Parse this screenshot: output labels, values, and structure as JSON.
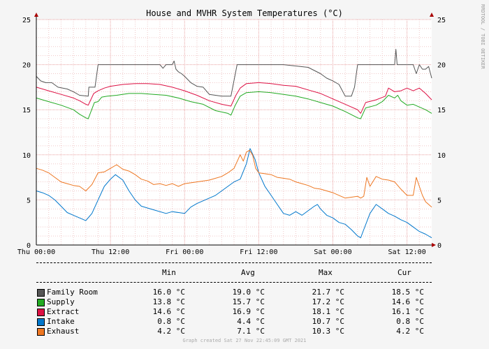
{
  "chart_data": {
    "type": "line",
    "title": "House and MVHR System Temperatures (°C)",
    "side_label": "RRDTOOL / TOBI OETIKER",
    "ylim": [
      0,
      25
    ],
    "yticks": [
      0,
      5,
      10,
      15,
      20,
      25
    ],
    "x_hours": [
      0,
      60
    ],
    "xticks": [
      {
        "h": 0,
        "label": "Thu 00:00"
      },
      {
        "h": 12,
        "label": "Thu 12:00"
      },
      {
        "h": 24,
        "label": "Fri 00:00"
      },
      {
        "h": 36,
        "label": "Fri 12:00"
      },
      {
        "h": 48,
        "label": "Sat 00:00"
      },
      {
        "h": 60,
        "label": "Sat 12:00"
      }
    ],
    "grid": true,
    "series": [
      {
        "name": "Family Room",
        "color": "#555555",
        "points": [
          [
            0,
            18.7
          ],
          [
            0.7,
            18.2
          ],
          [
            1.5,
            18.0
          ],
          [
            2.5,
            18.0
          ],
          [
            3.5,
            17.5
          ],
          [
            5,
            17.3
          ],
          [
            6,
            17.0
          ],
          [
            7,
            16.6
          ],
          [
            8.4,
            16.5
          ],
          [
            8.5,
            17.5
          ],
          [
            9.5,
            17.5
          ],
          [
            10,
            20.0
          ],
          [
            14,
            20.0
          ],
          [
            15,
            20.0
          ],
          [
            20,
            20.0
          ],
          [
            20.5,
            19.6
          ],
          [
            21,
            20.0
          ],
          [
            22,
            20.0
          ],
          [
            22.3,
            20.4
          ],
          [
            22.6,
            19.5
          ],
          [
            23,
            19.2
          ],
          [
            23.5,
            19.0
          ],
          [
            24,
            18.7
          ],
          [
            25,
            18.0
          ],
          [
            26,
            17.6
          ],
          [
            27,
            17.5
          ],
          [
            28,
            16.7
          ],
          [
            30,
            16.5
          ],
          [
            31.5,
            16.5
          ],
          [
            32.5,
            20.0
          ],
          [
            38,
            20.0
          ],
          [
            40,
            20.0
          ],
          [
            44,
            19.7
          ],
          [
            46,
            19.0
          ],
          [
            47,
            18.5
          ],
          [
            48,
            18.2
          ],
          [
            49,
            17.8
          ],
          [
            50,
            16.5
          ],
          [
            51,
            16.5
          ],
          [
            51.5,
            17.5
          ],
          [
            52,
            20.0
          ],
          [
            57,
            20.0
          ],
          [
            58,
            20.0
          ],
          [
            58.2,
            21.7
          ],
          [
            58.4,
            20.0
          ],
          [
            59,
            20.0
          ],
          [
            60,
            20.0
          ],
          [
            61,
            20.0
          ],
          [
            61.5,
            19.0
          ],
          [
            62,
            20.0
          ],
          [
            62.5,
            19.5
          ],
          [
            63,
            19.5
          ],
          [
            63.5,
            19.8
          ],
          [
            64,
            18.5
          ]
        ]
      },
      {
        "name": "Supply",
        "color": "#22aa22",
        "points": [
          [
            0,
            16.3
          ],
          [
            2,
            15.9
          ],
          [
            4,
            15.5
          ],
          [
            6,
            15.0
          ],
          [
            7,
            14.5
          ],
          [
            8,
            14.1
          ],
          [
            8.4,
            14.0
          ],
          [
            9.4,
            15.8
          ],
          [
            10,
            15.9
          ],
          [
            10.6,
            16.4
          ],
          [
            11.5,
            16.5
          ],
          [
            13,
            16.6
          ],
          [
            15,
            16.8
          ],
          [
            17,
            16.8
          ],
          [
            19,
            16.7
          ],
          [
            21,
            16.6
          ],
          [
            23,
            16.3
          ],
          [
            25,
            15.9
          ],
          [
            27,
            15.6
          ],
          [
            29,
            14.9
          ],
          [
            31,
            14.6
          ],
          [
            31.5,
            14.4
          ],
          [
            32.2,
            15.5
          ],
          [
            33,
            16.5
          ],
          [
            34,
            16.9
          ],
          [
            36,
            17.0
          ],
          [
            38,
            16.9
          ],
          [
            40,
            16.7
          ],
          [
            42,
            16.5
          ],
          [
            44,
            16.2
          ],
          [
            46,
            15.8
          ],
          [
            48,
            15.4
          ],
          [
            50,
            14.8
          ],
          [
            52,
            14.1
          ],
          [
            52.5,
            14.0
          ],
          [
            53.3,
            15.2
          ],
          [
            55,
            15.5
          ],
          [
            56,
            15.9
          ],
          [
            57,
            16.6
          ],
          [
            58,
            16.3
          ],
          [
            58.5,
            16.6
          ],
          [
            59,
            16.0
          ],
          [
            60,
            15.5
          ],
          [
            61,
            15.6
          ],
          [
            62,
            15.3
          ],
          [
            63,
            15.0
          ],
          [
            64,
            14.6
          ]
        ]
      },
      {
        "name": "Extract",
        "color": "#dd1144",
        "points": [
          [
            0,
            17.5
          ],
          [
            2,
            17.1
          ],
          [
            4,
            16.7
          ],
          [
            6,
            16.3
          ],
          [
            7,
            16.0
          ],
          [
            8,
            15.6
          ],
          [
            8.4,
            15.5
          ],
          [
            9.3,
            16.8
          ],
          [
            10,
            17.1
          ],
          [
            11,
            17.4
          ],
          [
            12,
            17.6
          ],
          [
            14,
            17.8
          ],
          [
            16,
            17.9
          ],
          [
            18,
            17.9
          ],
          [
            20,
            17.8
          ],
          [
            22,
            17.5
          ],
          [
            24,
            17.1
          ],
          [
            26,
            16.6
          ],
          [
            28,
            16.0
          ],
          [
            30,
            15.6
          ],
          [
            31.5,
            15.4
          ],
          [
            32.3,
            16.6
          ],
          [
            33,
            17.4
          ],
          [
            34,
            17.9
          ],
          [
            36,
            18.0
          ],
          [
            38,
            17.9
          ],
          [
            40,
            17.7
          ],
          [
            42,
            17.6
          ],
          [
            44,
            17.2
          ],
          [
            46,
            16.8
          ],
          [
            48,
            16.2
          ],
          [
            50,
            15.6
          ],
          [
            52,
            15.0
          ],
          [
            52.5,
            14.6
          ],
          [
            53.3,
            15.8
          ],
          [
            55,
            16.1
          ],
          [
            56.5,
            16.5
          ],
          [
            57,
            17.4
          ],
          [
            58,
            17.0
          ],
          [
            59,
            17.1
          ],
          [
            60,
            17.4
          ],
          [
            61,
            17.1
          ],
          [
            62,
            17.4
          ],
          [
            63,
            16.8
          ],
          [
            64,
            16.1
          ]
        ]
      },
      {
        "name": "Intake",
        "color": "#0077cc",
        "points": [
          [
            0,
            6.0
          ],
          [
            1,
            5.8
          ],
          [
            2,
            5.5
          ],
          [
            3,
            5.0
          ],
          [
            4,
            4.3
          ],
          [
            5,
            3.6
          ],
          [
            6,
            3.3
          ],
          [
            7,
            3.0
          ],
          [
            8,
            2.7
          ],
          [
            9,
            3.5
          ],
          [
            10,
            5.0
          ],
          [
            11,
            6.5
          ],
          [
            12,
            7.3
          ],
          [
            12.8,
            7.8
          ],
          [
            14,
            7.2
          ],
          [
            15,
            6.0
          ],
          [
            16,
            5.0
          ],
          [
            17,
            4.3
          ],
          [
            19,
            3.9
          ],
          [
            21,
            3.5
          ],
          [
            22,
            3.7
          ],
          [
            24,
            3.5
          ],
          [
            25,
            4.2
          ],
          [
            26,
            4.6
          ],
          [
            28,
            5.2
          ],
          [
            29,
            5.5
          ],
          [
            30,
            6.0
          ],
          [
            31,
            6.5
          ],
          [
            32,
            7.0
          ],
          [
            33,
            7.3
          ],
          [
            34,
            9.0
          ],
          [
            34.6,
            10.7
          ],
          [
            35.4,
            9.5
          ],
          [
            36,
            8.0
          ],
          [
            37,
            6.5
          ],
          [
            38,
            5.5
          ],
          [
            39,
            4.5
          ],
          [
            40,
            3.5
          ],
          [
            41,
            3.3
          ],
          [
            42,
            3.7
          ],
          [
            43,
            3.3
          ],
          [
            44,
            3.8
          ],
          [
            45,
            4.3
          ],
          [
            45.5,
            4.5
          ],
          [
            46,
            4.0
          ],
          [
            47,
            3.3
          ],
          [
            48,
            3.0
          ],
          [
            49,
            2.5
          ],
          [
            50,
            2.3
          ],
          [
            51,
            1.7
          ],
          [
            52,
            1.0
          ],
          [
            52.5,
            0.8
          ],
          [
            53,
            1.7
          ],
          [
            54,
            3.5
          ],
          [
            55,
            4.5
          ],
          [
            56,
            4.0
          ],
          [
            57,
            3.5
          ],
          [
            58,
            3.2
          ],
          [
            59,
            2.8
          ],
          [
            60,
            2.5
          ],
          [
            61,
            2.0
          ],
          [
            62,
            1.5
          ],
          [
            63,
            1.2
          ],
          [
            64,
            0.8
          ]
        ]
      },
      {
        "name": "Exhaust",
        "color": "#ee7722",
        "points": [
          [
            0,
            8.5
          ],
          [
            1,
            8.3
          ],
          [
            2,
            8.0
          ],
          [
            3,
            7.5
          ],
          [
            4,
            7.0
          ],
          [
            5,
            6.8
          ],
          [
            6,
            6.6
          ],
          [
            7,
            6.5
          ],
          [
            8,
            6.0
          ],
          [
            9,
            6.7
          ],
          [
            10,
            8.0
          ],
          [
            11,
            8.1
          ],
          [
            12,
            8.5
          ],
          [
            13,
            8.9
          ],
          [
            14,
            8.4
          ],
          [
            15,
            8.2
          ],
          [
            16,
            7.8
          ],
          [
            17,
            7.3
          ],
          [
            18,
            7.1
          ],
          [
            19,
            6.7
          ],
          [
            20,
            6.8
          ],
          [
            21,
            6.6
          ],
          [
            22,
            6.8
          ],
          [
            23,
            6.5
          ],
          [
            24,
            6.8
          ],
          [
            26,
            7.0
          ],
          [
            28,
            7.2
          ],
          [
            30,
            7.6
          ],
          [
            31,
            8.0
          ],
          [
            32,
            8.5
          ],
          [
            33,
            10.0
          ],
          [
            33.5,
            9.3
          ],
          [
            34,
            10.3
          ],
          [
            34.5,
            10.5
          ],
          [
            35,
            10.0
          ],
          [
            35.5,
            8.5
          ],
          [
            36,
            8.0
          ],
          [
            37,
            7.9
          ],
          [
            38,
            7.8
          ],
          [
            39,
            7.5
          ],
          [
            40,
            7.4
          ],
          [
            41,
            7.3
          ],
          [
            42,
            7.0
          ],
          [
            43,
            6.8
          ],
          [
            44,
            6.6
          ],
          [
            45,
            6.3
          ],
          [
            46,
            6.2
          ],
          [
            47,
            6.0
          ],
          [
            48,
            5.8
          ],
          [
            49,
            5.5
          ],
          [
            50,
            5.2
          ],
          [
            51,
            5.3
          ],
          [
            52,
            5.4
          ],
          [
            52.5,
            5.2
          ],
          [
            53,
            5.4
          ],
          [
            53.5,
            7.5
          ],
          [
            54,
            6.5
          ],
          [
            55,
            7.6
          ],
          [
            56,
            7.3
          ],
          [
            57,
            7.2
          ],
          [
            58,
            7.0
          ],
          [
            59,
            6.2
          ],
          [
            60,
            5.5
          ],
          [
            61,
            5.5
          ],
          [
            61.5,
            7.5
          ],
          [
            62,
            6.5
          ],
          [
            62.5,
            5.5
          ],
          [
            63,
            4.8
          ],
          [
            64,
            4.2
          ]
        ]
      }
    ]
  },
  "legend": {
    "headers": {
      "min": "Min",
      "avg": "Avg",
      "max": "Max",
      "cur": "Cur"
    },
    "rows": [
      {
        "name": "Family Room",
        "color": "#555555",
        "min": "16.0 °C",
        "avg": "19.0 °C",
        "max": "21.7 °C",
        "cur": "18.5 °C"
      },
      {
        "name": "Supply",
        "color": "#22aa22",
        "min": "13.8 °C",
        "avg": "15.7 °C",
        "max": "17.2 °C",
        "cur": "14.6 °C"
      },
      {
        "name": "Extract",
        "color": "#dd1144",
        "min": "14.6 °C",
        "avg": "16.9 °C",
        "max": "18.1 °C",
        "cur": "16.1 °C"
      },
      {
        "name": "Intake",
        "color": "#0077cc",
        "min": "0.8 °C",
        "avg": "4.4 °C",
        "max": "10.7 °C",
        "cur": "0.8 °C"
      },
      {
        "name": "Exhaust",
        "color": "#ee7722",
        "min": "4.2 °C",
        "avg": "7.1 °C",
        "max": "10.3 °C",
        "cur": "4.2 °C"
      }
    ]
  },
  "footer": "Graph created Sat 27 Nov 22:45:09 GMT 2021"
}
